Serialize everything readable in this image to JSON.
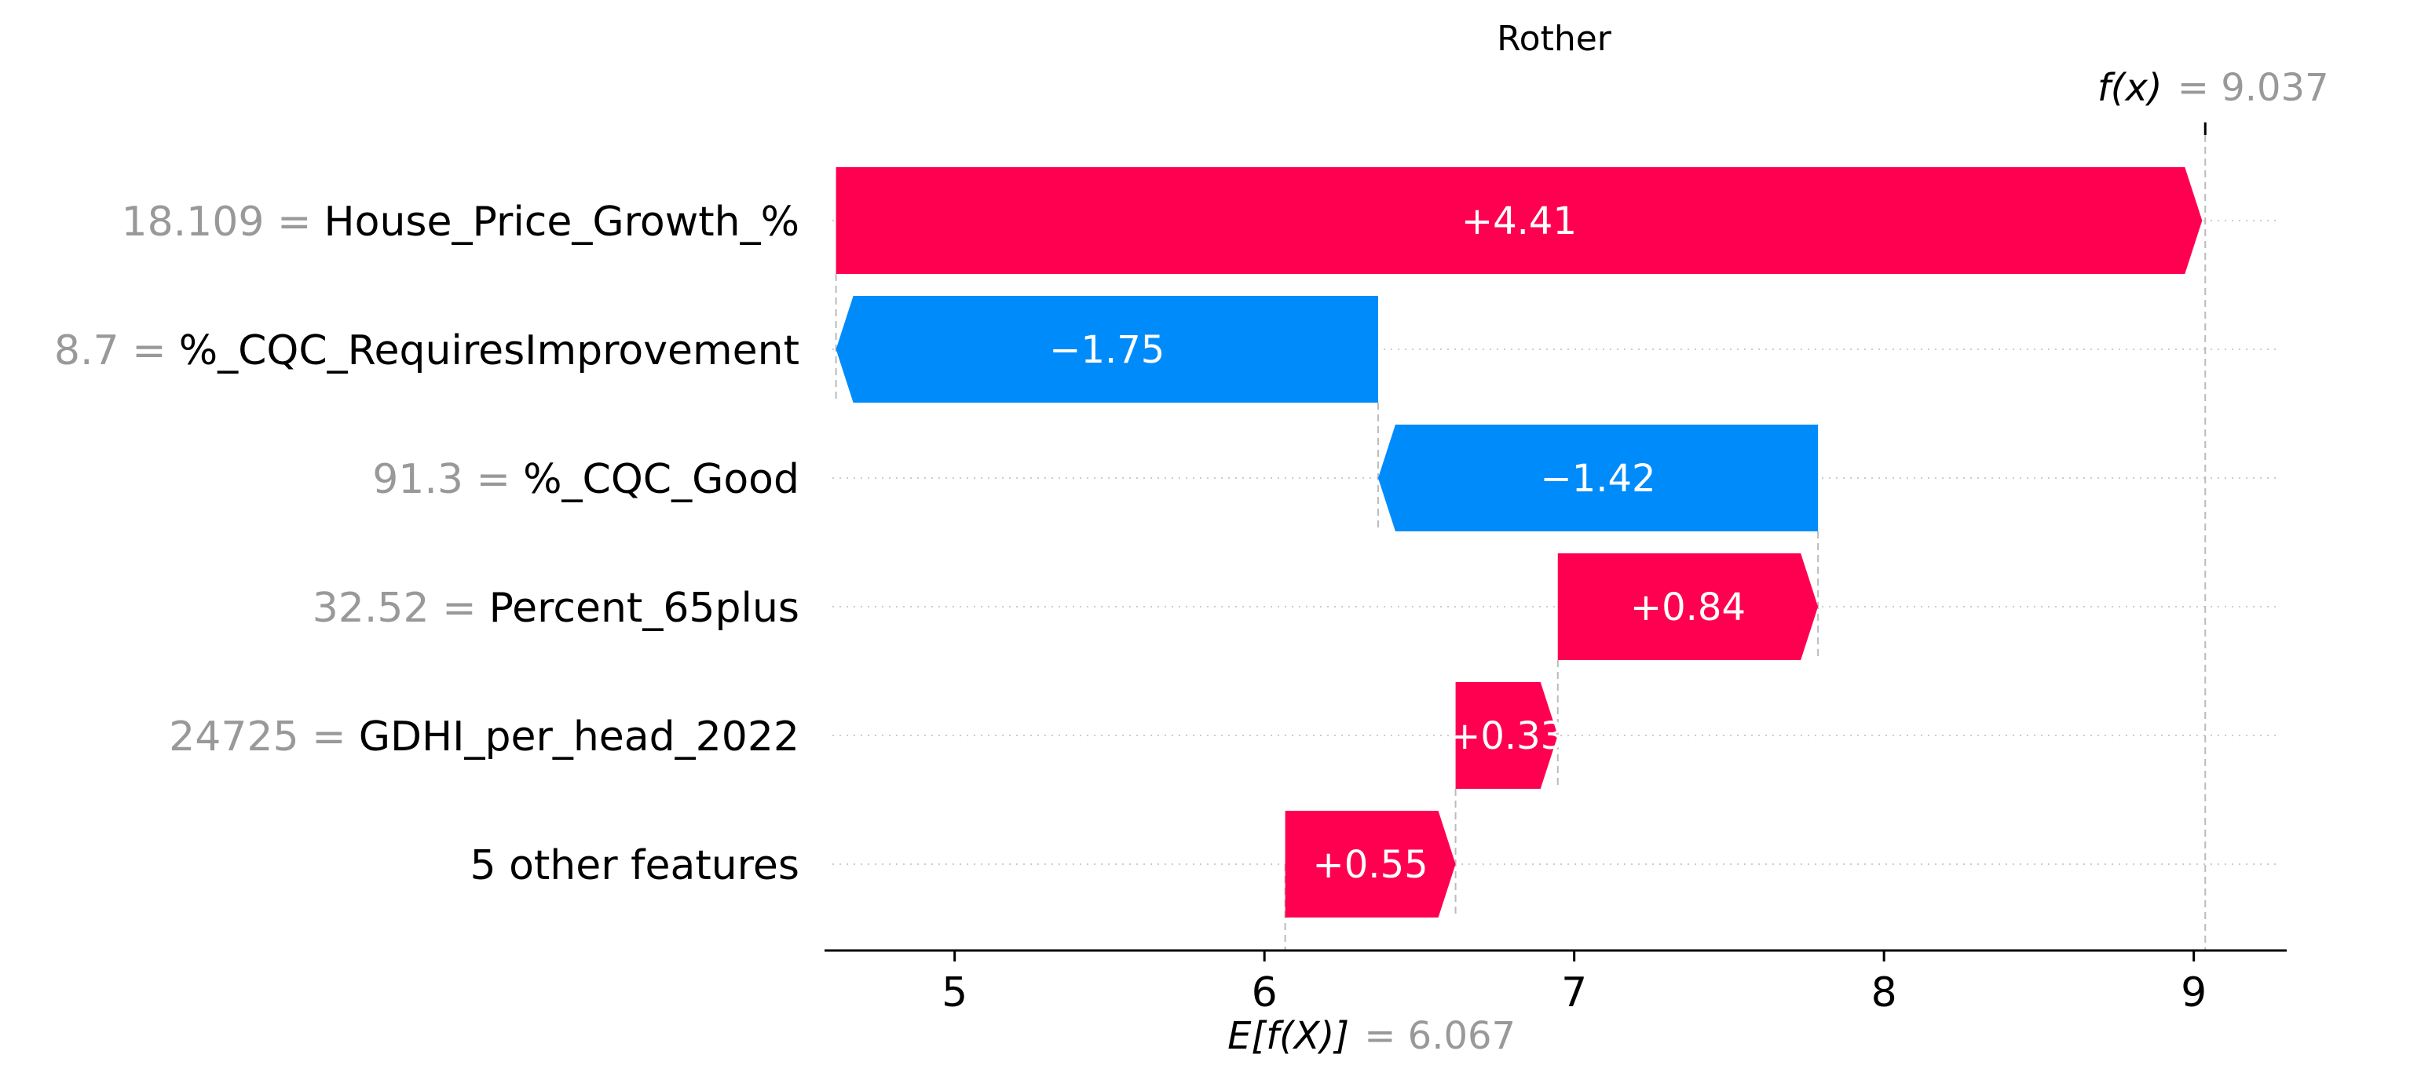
{
  "chart_data": {
    "type": "waterfall",
    "title": "Rother",
    "base_value": 6.067,
    "base_label": "E[f(X)]",
    "base_value_text": "= 6.067",
    "output_value": 9.037,
    "output_label": "f(x)",
    "output_value_text": "= 9.037",
    "xlim": [
      4.58,
      9.3
    ],
    "xticks": [
      5,
      6,
      7,
      8,
      9
    ],
    "features": [
      {
        "value": "18.109 =",
        "name": "House_Price_Growth_%",
        "contribution": 4.41,
        "label": "+4.41"
      },
      {
        "value": "8.7 =",
        "name": "%_CQC_RequiresImprovement",
        "contribution": -1.75,
        "label": "−1.75"
      },
      {
        "value": "91.3 =",
        "name": "%_CQC_Good",
        "contribution": -1.42,
        "label": "−1.42"
      },
      {
        "value": "32.52 =",
        "name": "Percent_65plus",
        "contribution": 0.84,
        "label": "+0.84"
      },
      {
        "value": "24725 =",
        "name": "GDHI_per_head_2022",
        "contribution": 0.33,
        "label": "+0.33"
      },
      {
        "value": "",
        "name": "5 other features",
        "contribution": 0.55,
        "label": "+0.55"
      }
    ],
    "colors": {
      "positive": "#ff0051",
      "negative": "#008bfb",
      "value_text": "#999999"
    }
  }
}
